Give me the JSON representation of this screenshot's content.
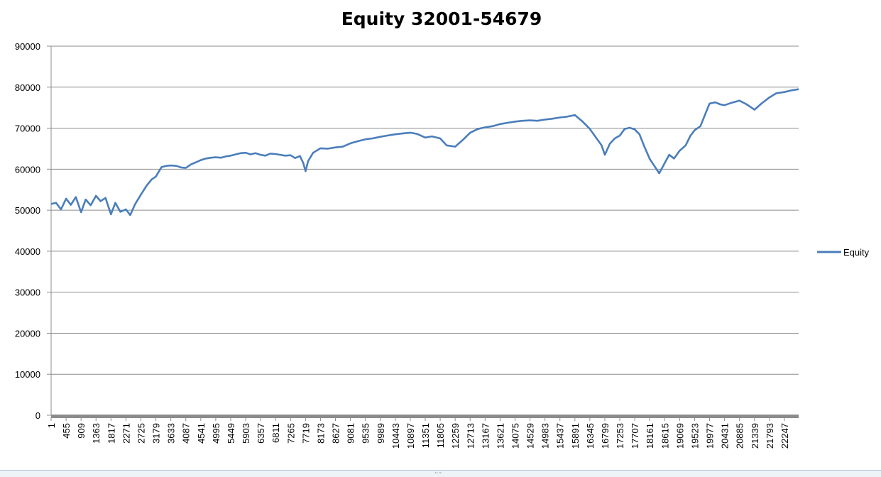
{
  "chart_data": {
    "type": "line",
    "title": "Equity 32001-54679",
    "ylim": [
      0,
      90000
    ],
    "yticks": [
      0,
      10000,
      20000,
      30000,
      40000,
      50000,
      60000,
      70000,
      80000,
      90000
    ],
    "xlim": [
      1,
      22679
    ],
    "xticks": [
      "1",
      "455",
      "909",
      "1363",
      "1817",
      "2271",
      "2725",
      "3179",
      "3633",
      "4087",
      "4541",
      "4995",
      "5449",
      "5903",
      "6357",
      "6811",
      "7265",
      "7719",
      "8173",
      "8627",
      "9081",
      "9535",
      "9989",
      "10443",
      "10897",
      "11351",
      "11805",
      "12259",
      "12713",
      "13167",
      "13621",
      "14075",
      "14529",
      "14983",
      "15437",
      "15891",
      "16345",
      "16799",
      "17253",
      "17707",
      "18161",
      "18615",
      "19069",
      "19523",
      "19977",
      "20431",
      "20885",
      "21339",
      "21793",
      "22247"
    ],
    "grid": "horizontal",
    "legend_position": "right",
    "series": [
      {
        "name": "Equity",
        "color": "#4a7ebb",
        "x": [
          1,
          150,
          300,
          455,
          600,
          750,
          909,
          1050,
          1200,
          1363,
          1500,
          1650,
          1817,
          1950,
          2100,
          2271,
          2400,
          2550,
          2725,
          2900,
          3050,
          3179,
          3350,
          3500,
          3633,
          3800,
          3950,
          4087,
          4250,
          4400,
          4541,
          4700,
          4850,
          4995,
          5150,
          5300,
          5449,
          5600,
          5750,
          5903,
          6050,
          6200,
          6357,
          6500,
          6650,
          6811,
          6950,
          7100,
          7265,
          7400,
          7550,
          7650,
          7719,
          7800,
          7950,
          8173,
          8400,
          8627,
          8850,
          9081,
          9300,
          9535,
          9750,
          9989,
          10200,
          10443,
          10650,
          10897,
          11100,
          11351,
          11550,
          11805,
          12000,
          12259,
          12500,
          12713,
          12950,
          13167,
          13400,
          13621,
          13850,
          14075,
          14300,
          14529,
          14750,
          14983,
          15200,
          15437,
          15650,
          15891,
          16100,
          16345,
          16550,
          16700,
          16799,
          16950,
          17100,
          17253,
          17400,
          17550,
          17707,
          17850,
          18000,
          18161,
          18300,
          18450,
          18615,
          18750,
          18900,
          19069,
          19250,
          19400,
          19523,
          19700,
          19850,
          19977,
          20150,
          20300,
          20431,
          20650,
          20885,
          21100,
          21339,
          21550,
          21793,
          22000,
          22247,
          22450,
          22679
        ],
        "y": [
          51500,
          51800,
          50200,
          52800,
          51300,
          53200,
          49500,
          52600,
          51200,
          53500,
          52200,
          53000,
          49000,
          51800,
          49600,
          50200,
          48800,
          51500,
          53800,
          56000,
          57500,
          58200,
          60500,
          60800,
          60900,
          60800,
          60400,
          60300,
          61200,
          61700,
          62200,
          62600,
          62800,
          62900,
          62800,
          63100,
          63300,
          63600,
          63900,
          64000,
          63600,
          63900,
          63500,
          63300,
          63800,
          63700,
          63500,
          63300,
          63400,
          62700,
          63200,
          61500,
          59500,
          62000,
          64000,
          65100,
          65000,
          65300,
          65500,
          66300,
          66800,
          67300,
          67500,
          67900,
          68200,
          68500,
          68700,
          68900,
          68600,
          67700,
          68000,
          67500,
          65800,
          65500,
          67200,
          68900,
          69800,
          70200,
          70500,
          71000,
          71300,
          71600,
          71800,
          71900,
          71800,
          72100,
          72300,
          72600,
          72800,
          73200,
          71800,
          69800,
          67500,
          65800,
          63500,
          66200,
          67500,
          68200,
          69800,
          70100,
          69700,
          68500,
          65500,
          62500,
          60800,
          59000,
          61500,
          63500,
          62600,
          64500,
          65800,
          68200,
          69500,
          70500,
          73500,
          76000,
          76300,
          75800,
          75600,
          76200,
          76700,
          75800,
          74500,
          76000,
          77500,
          78500,
          78800,
          79200,
          79500
        ]
      }
    ]
  }
}
